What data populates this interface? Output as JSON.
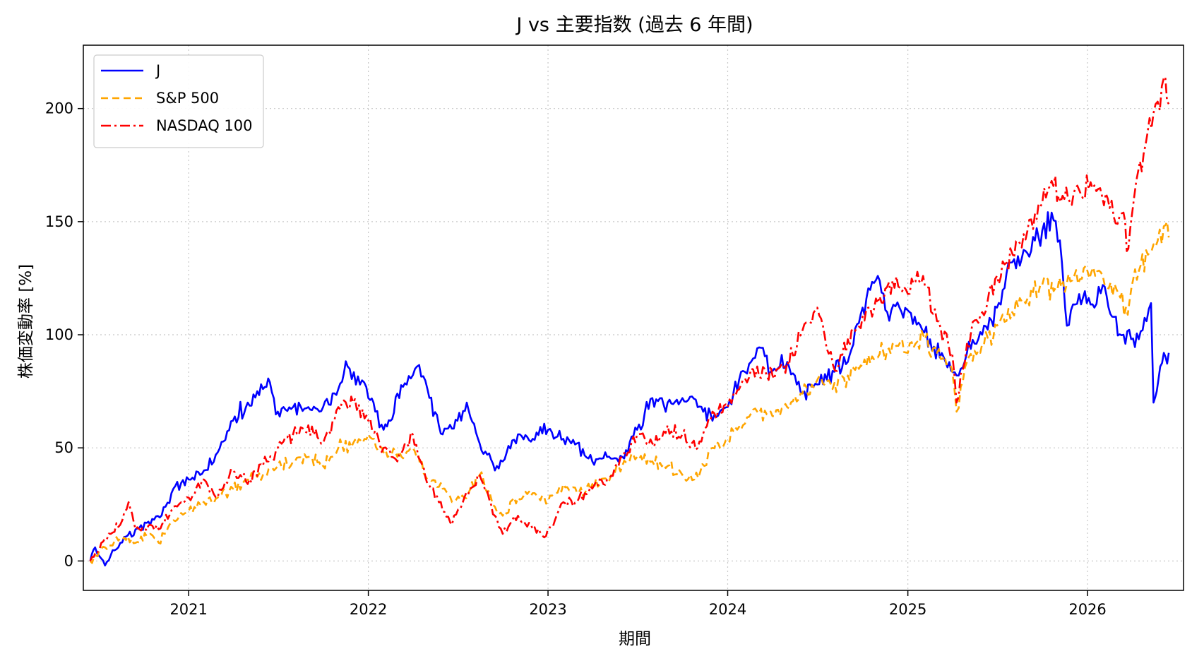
{
  "chart_data": {
    "type": "line",
    "title": "J vs 主要指数 (過去 6 年間)",
    "xlabel": "期間",
    "ylabel": "株価変動率 [%]",
    "xlim": [
      "2020-06-01",
      "2026-07-15"
    ],
    "ylim": [
      -13,
      228
    ],
    "x_ticks": [
      "2021",
      "2022",
      "2023",
      "2024",
      "2025",
      "2026"
    ],
    "y_ticks": [
      0,
      50,
      100,
      150,
      200
    ],
    "grid": true,
    "legend_position": "top-left",
    "series": [
      {
        "name": "J",
        "color": "#0000ff",
        "style": "solid",
        "points": [
          [
            "2020-06-15",
            0
          ],
          [
            "2020-06-25",
            6
          ],
          [
            "2020-07-15",
            -2
          ],
          [
            "2020-08-15",
            8
          ],
          [
            "2020-09-15",
            14
          ],
          [
            "2020-10-15",
            16
          ],
          [
            "2020-11-15",
            24
          ],
          [
            "2020-12-01",
            32
          ],
          [
            "2021-01-01",
            36
          ],
          [
            "2021-02-01",
            40
          ],
          [
            "2021-03-01",
            48
          ],
          [
            "2021-04-01",
            62
          ],
          [
            "2021-05-01",
            70
          ],
          [
            "2021-06-01",
            76
          ],
          [
            "2021-06-15",
            79
          ],
          [
            "2021-07-01",
            66
          ],
          [
            "2021-08-01",
            68
          ],
          [
            "2021-09-01",
            68
          ],
          [
            "2021-10-01",
            68
          ],
          [
            "2021-11-01",
            76
          ],
          [
            "2021-11-20",
            86
          ],
          [
            "2021-12-15",
            78
          ],
          [
            "2022-01-01",
            72
          ],
          [
            "2022-01-15",
            66
          ],
          [
            "2022-02-01",
            58
          ],
          [
            "2022-02-15",
            62
          ],
          [
            "2022-03-01",
            74
          ],
          [
            "2022-03-20",
            78
          ],
          [
            "2022-04-10",
            86
          ],
          [
            "2022-05-01",
            76
          ],
          [
            "2022-06-01",
            56
          ],
          [
            "2022-07-01",
            62
          ],
          [
            "2022-07-20",
            70
          ],
          [
            "2022-08-15",
            52
          ],
          [
            "2022-09-15",
            40
          ],
          [
            "2022-10-01",
            44
          ],
          [
            "2022-11-01",
            56
          ],
          [
            "2022-12-01",
            54
          ],
          [
            "2023-01-01",
            58
          ],
          [
            "2023-02-01",
            54
          ],
          [
            "2023-03-01",
            52
          ],
          [
            "2023-04-01",
            44
          ],
          [
            "2023-05-01",
            46
          ],
          [
            "2023-06-01",
            46
          ],
          [
            "2023-07-01",
            58
          ],
          [
            "2023-08-01",
            72
          ],
          [
            "2023-09-01",
            70
          ],
          [
            "2023-10-01",
            72
          ],
          [
            "2023-11-01",
            68
          ],
          [
            "2023-12-01",
            62
          ],
          [
            "2024-01-01",
            68
          ],
          [
            "2024-02-01",
            84
          ],
          [
            "2024-03-01",
            94
          ],
          [
            "2024-04-01",
            84
          ],
          [
            "2024-05-01",
            88
          ],
          [
            "2024-06-01",
            74
          ],
          [
            "2024-07-01",
            78
          ],
          [
            "2024-08-01",
            84
          ],
          [
            "2024-09-01",
            88
          ],
          [
            "2024-10-01",
            112
          ],
          [
            "2024-11-01",
            126
          ],
          [
            "2024-11-20",
            110
          ],
          [
            "2024-12-15",
            112
          ],
          [
            "2025-01-15",
            108
          ],
          [
            "2025-02-15",
            98
          ],
          [
            "2025-03-15",
            90
          ],
          [
            "2025-04-10",
            82
          ],
          [
            "2025-05-01",
            92
          ],
          [
            "2025-06-01",
            100
          ],
          [
            "2025-07-01",
            112
          ],
          [
            "2025-08-01",
            132
          ],
          [
            "2025-09-01",
            136
          ],
          [
            "2025-10-01",
            146
          ],
          [
            "2025-10-20",
            154
          ],
          [
            "2025-11-10",
            132
          ],
          [
            "2025-11-20",
            104
          ],
          [
            "2025-12-15",
            118
          ],
          [
            "2026-01-15",
            112
          ],
          [
            "2026-02-01",
            122
          ],
          [
            "2026-02-20",
            108
          ],
          [
            "2026-03-15",
            100
          ],
          [
            "2026-04-15",
            98
          ],
          [
            "2026-05-01",
            106
          ],
          [
            "2026-05-10",
            114
          ],
          [
            "2026-05-15",
            70
          ],
          [
            "2026-05-25",
            80
          ],
          [
            "2026-06-05",
            92
          ],
          [
            "2026-06-15",
            92
          ]
        ]
      },
      {
        "name": "S&P 500",
        "color": "#ffa500",
        "style": "dashed",
        "points": [
          [
            "2020-06-15",
            0
          ],
          [
            "2020-07-15",
            6
          ],
          [
            "2020-08-15",
            10
          ],
          [
            "2020-09-15",
            8
          ],
          [
            "2020-10-15",
            12
          ],
          [
            "2020-11-01",
            8
          ],
          [
            "2020-12-01",
            18
          ],
          [
            "2021-01-01",
            22
          ],
          [
            "2021-02-01",
            26
          ],
          [
            "2021-03-01",
            28
          ],
          [
            "2021-04-01",
            32
          ],
          [
            "2021-05-01",
            36
          ],
          [
            "2021-06-01",
            38
          ],
          [
            "2021-07-01",
            42
          ],
          [
            "2021-08-01",
            44
          ],
          [
            "2021-09-01",
            46
          ],
          [
            "2021-10-01",
            42
          ],
          [
            "2021-11-01",
            50
          ],
          [
            "2021-12-01",
            52
          ],
          [
            "2022-01-01",
            56
          ],
          [
            "2022-02-01",
            48
          ],
          [
            "2022-03-01",
            46
          ],
          [
            "2022-04-01",
            50
          ],
          [
            "2022-05-01",
            36
          ],
          [
            "2022-06-01",
            32
          ],
          [
            "2022-06-20",
            26
          ],
          [
            "2022-07-15",
            28
          ],
          [
            "2022-08-15",
            38
          ],
          [
            "2022-09-15",
            24
          ],
          [
            "2022-10-01",
            20
          ],
          [
            "2022-11-01",
            28
          ],
          [
            "2022-12-01",
            30
          ],
          [
            "2023-01-01",
            26
          ],
          [
            "2023-02-01",
            34
          ],
          [
            "2023-03-01",
            30
          ],
          [
            "2023-04-01",
            34
          ],
          [
            "2023-05-01",
            36
          ],
          [
            "2023-06-01",
            42
          ],
          [
            "2023-07-01",
            46
          ],
          [
            "2023-08-01",
            44
          ],
          [
            "2023-09-01",
            42
          ],
          [
            "2023-10-01",
            38
          ],
          [
            "2023-10-25",
            36
          ],
          [
            "2023-12-01",
            50
          ],
          [
            "2024-01-01",
            54
          ],
          [
            "2024-02-01",
            60
          ],
          [
            "2024-03-01",
            66
          ],
          [
            "2024-04-01",
            64
          ],
          [
            "2024-05-01",
            68
          ],
          [
            "2024-06-01",
            74
          ],
          [
            "2024-07-01",
            80
          ],
          [
            "2024-08-01",
            76
          ],
          [
            "2024-09-01",
            82
          ],
          [
            "2024-10-01",
            86
          ],
          [
            "2024-11-01",
            90
          ],
          [
            "2024-12-01",
            96
          ],
          [
            "2025-01-01",
            92
          ],
          [
            "2025-02-01",
            100
          ],
          [
            "2025-03-01",
            92
          ],
          [
            "2025-04-01",
            84
          ],
          [
            "2025-04-10",
            66
          ],
          [
            "2025-05-01",
            88
          ],
          [
            "2025-06-01",
            96
          ],
          [
            "2025-07-01",
            104
          ],
          [
            "2025-08-01",
            110
          ],
          [
            "2025-09-01",
            116
          ],
          [
            "2025-10-01",
            122
          ],
          [
            "2025-11-01",
            120
          ],
          [
            "2025-12-01",
            124
          ],
          [
            "2026-01-01",
            128
          ],
          [
            "2026-02-01",
            126
          ],
          [
            "2026-03-01",
            120
          ],
          [
            "2026-03-20",
            112
          ],
          [
            "2026-04-15",
            128
          ],
          [
            "2026-05-15",
            140
          ],
          [
            "2026-06-05",
            148
          ],
          [
            "2026-06-15",
            143
          ]
        ]
      },
      {
        "name": "NASDAQ 100",
        "color": "#ff0000",
        "style": "dashdot",
        "points": [
          [
            "2020-06-15",
            0
          ],
          [
            "2020-07-15",
            10
          ],
          [
            "2020-08-15",
            16
          ],
          [
            "2020-09-01",
            26
          ],
          [
            "2020-09-15",
            14
          ],
          [
            "2020-10-15",
            16
          ],
          [
            "2020-11-01",
            14
          ],
          [
            "2020-12-01",
            24
          ],
          [
            "2021-01-01",
            28
          ],
          [
            "2021-02-01",
            36
          ],
          [
            "2021-03-01",
            28
          ],
          [
            "2021-04-01",
            40
          ],
          [
            "2021-05-01",
            34
          ],
          [
            "2021-06-01",
            42
          ],
          [
            "2021-07-01",
            50
          ],
          [
            "2021-08-01",
            56
          ],
          [
            "2021-09-01",
            60
          ],
          [
            "2021-10-01",
            52
          ],
          [
            "2021-11-01",
            68
          ],
          [
            "2021-12-01",
            70
          ],
          [
            "2022-01-01",
            62
          ],
          [
            "2022-02-01",
            50
          ],
          [
            "2022-03-01",
            44
          ],
          [
            "2022-04-01",
            56
          ],
          [
            "2022-05-01",
            34
          ],
          [
            "2022-06-01",
            22
          ],
          [
            "2022-06-20",
            16
          ],
          [
            "2022-07-15",
            28
          ],
          [
            "2022-08-15",
            38
          ],
          [
            "2022-09-15",
            20
          ],
          [
            "2022-10-01",
            12
          ],
          [
            "2022-11-01",
            20
          ],
          [
            "2022-12-01",
            14
          ],
          [
            "2022-12-28",
            11
          ],
          [
            "2023-01-15",
            18
          ],
          [
            "2023-02-01",
            26
          ],
          [
            "2023-03-01",
            26
          ],
          [
            "2023-04-01",
            32
          ],
          [
            "2023-05-01",
            36
          ],
          [
            "2023-06-01",
            46
          ],
          [
            "2023-07-01",
            56
          ],
          [
            "2023-08-01",
            52
          ],
          [
            "2023-09-01",
            60
          ],
          [
            "2023-10-01",
            56
          ],
          [
            "2023-11-01",
            50
          ],
          [
            "2023-12-01",
            66
          ],
          [
            "2024-01-01",
            68
          ],
          [
            "2024-02-01",
            80
          ],
          [
            "2024-03-01",
            86
          ],
          [
            "2024-04-01",
            82
          ],
          [
            "2024-05-01",
            88
          ],
          [
            "2024-06-01",
            102
          ],
          [
            "2024-07-01",
            112
          ],
          [
            "2024-07-20",
            94
          ],
          [
            "2024-08-10",
            84
          ],
          [
            "2024-09-01",
            98
          ],
          [
            "2024-10-01",
            108
          ],
          [
            "2024-11-01",
            114
          ],
          [
            "2024-12-01",
            124
          ],
          [
            "2025-01-01",
            118
          ],
          [
            "2025-02-01",
            126
          ],
          [
            "2025-03-01",
            106
          ],
          [
            "2025-04-01",
            92
          ],
          [
            "2025-04-10",
            70
          ],
          [
            "2025-05-01",
            96
          ],
          [
            "2025-06-01",
            110
          ],
          [
            "2025-07-01",
            126
          ],
          [
            "2025-08-01",
            136
          ],
          [
            "2025-09-01",
            146
          ],
          [
            "2025-10-01",
            158
          ],
          [
            "2025-10-20",
            168
          ],
          [
            "2025-11-15",
            160
          ],
          [
            "2025-12-15",
            164
          ],
          [
            "2026-01-15",
            166
          ],
          [
            "2026-02-15",
            156
          ],
          [
            "2026-03-15",
            154
          ],
          [
            "2026-03-25",
            138
          ],
          [
            "2026-04-10",
            168
          ],
          [
            "2026-04-25",
            180
          ],
          [
            "2026-05-15",
            198
          ],
          [
            "2026-06-01",
            210
          ],
          [
            "2026-06-08",
            214
          ],
          [
            "2026-06-15",
            202
          ]
        ]
      }
    ]
  }
}
